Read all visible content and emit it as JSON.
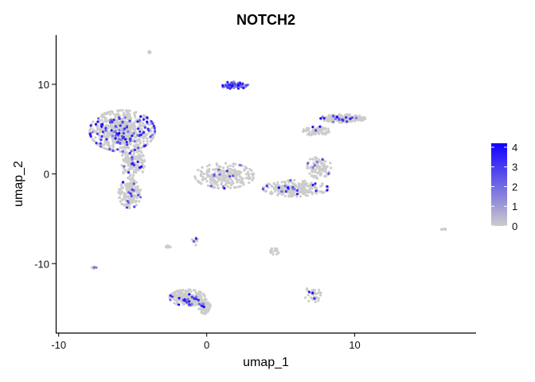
{
  "chart_data": {
    "type": "scatter",
    "title": "NOTCH2",
    "xlabel": "umap_1",
    "ylabel": "umap_2",
    "xlim": [
      -10.2,
      18.2
    ],
    "ylim": [
      -17.7,
      15.5
    ],
    "x_ticks": [
      -10,
      0,
      10
    ],
    "y_ticks": [
      -10,
      0,
      10
    ],
    "grid": false,
    "legend": {
      "placement": "right",
      "type": "colorbar",
      "ticks": [
        4,
        3,
        2,
        1,
        0
      ],
      "min": 0,
      "max": 4.2
    },
    "colors": {
      "low": "#cccccc",
      "high": "#1100ff"
    },
    "clusters": [
      {
        "shape": "blob",
        "cx": -5.7,
        "cy": 4.8,
        "rx": 2.2,
        "ry": 2.3,
        "n": 650,
        "expr_rate": 0.14
      },
      {
        "shape": "blob",
        "cx": -5.0,
        "cy": 1.2,
        "rx": 0.8,
        "ry": 1.8,
        "n": 160,
        "expr_rate": 0.07
      },
      {
        "shape": "blob",
        "cx": -5.2,
        "cy": -2.2,
        "rx": 0.75,
        "ry": 1.6,
        "n": 180,
        "expr_rate": 0.08
      },
      {
        "shape": "blob",
        "cx": 1.9,
        "cy": 9.9,
        "rx": 0.9,
        "ry": 0.4,
        "n": 70,
        "expr_rate": 0.9
      },
      {
        "shape": "blob",
        "cx": -3.8,
        "cy": 13.6,
        "rx": 0.12,
        "ry": 0.15,
        "n": 6,
        "expr_rate": 0.0
      },
      {
        "shape": "blob",
        "cx": 1.2,
        "cy": -0.2,
        "rx": 2.0,
        "ry": 1.4,
        "n": 240,
        "expr_rate": 0.06
      },
      {
        "shape": "blob",
        "cx": 6.0,
        "cy": -1.6,
        "rx": 2.2,
        "ry": 0.9,
        "n": 260,
        "expr_rate": 0.06
      },
      {
        "shape": "blob",
        "cx": 7.6,
        "cy": 0.8,
        "rx": 0.8,
        "ry": 1.3,
        "n": 90,
        "expr_rate": 0.05
      },
      {
        "shape": "blob",
        "cx": 9.2,
        "cy": 6.2,
        "rx": 1.5,
        "ry": 0.45,
        "n": 210,
        "expr_rate": 0.07
      },
      {
        "shape": "blob",
        "cx": 7.4,
        "cy": 4.8,
        "rx": 0.9,
        "ry": 0.5,
        "n": 70,
        "expr_rate": 0.04
      },
      {
        "shape": "blob",
        "cx": -1.3,
        "cy": -13.8,
        "rx": 1.2,
        "ry": 0.9,
        "n": 260,
        "expr_rate": 0.07
      },
      {
        "shape": "blob",
        "cx": -0.1,
        "cy": -14.8,
        "rx": 0.45,
        "ry": 0.8,
        "n": 80,
        "expr_rate": 0.06
      },
      {
        "shape": "blob",
        "cx": 7.2,
        "cy": -13.4,
        "rx": 0.6,
        "ry": 0.9,
        "n": 40,
        "expr_rate": 0.1
      },
      {
        "shape": "blob",
        "cx": -7.6,
        "cy": -10.4,
        "rx": 0.2,
        "ry": 0.15,
        "n": 8,
        "expr_rate": 0.1
      },
      {
        "shape": "blob",
        "cx": -2.6,
        "cy": -8.1,
        "rx": 0.15,
        "ry": 0.3,
        "n": 10,
        "expr_rate": 0.0
      },
      {
        "shape": "blob",
        "cx": -0.8,
        "cy": -7.5,
        "rx": 0.2,
        "ry": 0.5,
        "n": 12,
        "expr_rate": 0.1
      },
      {
        "shape": "blob",
        "cx": 4.6,
        "cy": -8.6,
        "rx": 0.3,
        "ry": 0.4,
        "n": 14,
        "expr_rate": 0.0
      },
      {
        "shape": "blob",
        "cx": 16.0,
        "cy": -6.2,
        "rx": 0.15,
        "ry": 0.12,
        "n": 6,
        "expr_rate": 0.0
      }
    ]
  }
}
